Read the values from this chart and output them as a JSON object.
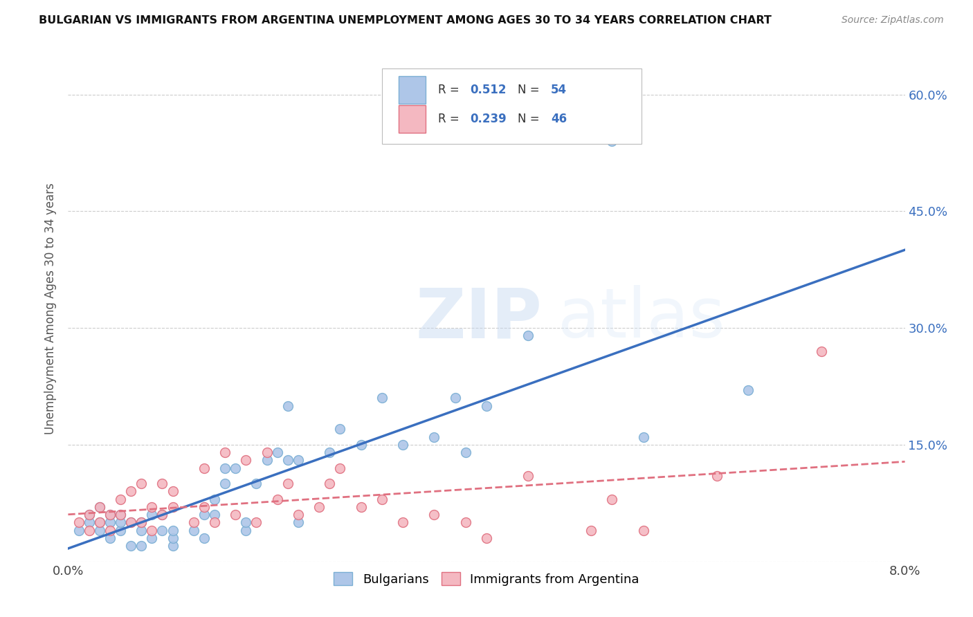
{
  "title": "BULGARIAN VS IMMIGRANTS FROM ARGENTINA UNEMPLOYMENT AMONG AGES 30 TO 34 YEARS CORRELATION CHART",
  "source": "Source: ZipAtlas.com",
  "ylabel": "Unemployment Among Ages 30 to 34 years",
  "x_min": 0.0,
  "x_max": 0.08,
  "y_min": 0.0,
  "y_max": 0.65,
  "x_ticks": [
    0.0,
    0.02,
    0.04,
    0.06,
    0.08
  ],
  "x_tick_labels": [
    "0.0%",
    "",
    "",
    "",
    "8.0%"
  ],
  "y_ticks": [
    0.0,
    0.15,
    0.3,
    0.45,
    0.6
  ],
  "y_tick_labels": [
    "",
    "15.0%",
    "30.0%",
    "45.0%",
    "60.0%"
  ],
  "bulgarian_color": "#aec6e8",
  "bulgarian_edge_color": "#7bafd4",
  "argentina_color": "#f4b8c1",
  "argentina_edge_color": "#e07080",
  "trend_bulgarian_color": "#3a6fbf",
  "trend_argentina_color": "#e07080",
  "R_bulgarian": 0.512,
  "N_bulgarian": 54,
  "R_argentina": 0.239,
  "N_argentina": 46,
  "watermark_zip": "ZIP",
  "watermark_atlas": "atlas",
  "bulgarian_x": [
    0.001,
    0.002,
    0.002,
    0.003,
    0.003,
    0.003,
    0.004,
    0.004,
    0.004,
    0.005,
    0.005,
    0.005,
    0.006,
    0.006,
    0.007,
    0.007,
    0.007,
    0.008,
    0.008,
    0.009,
    0.009,
    0.01,
    0.01,
    0.01,
    0.012,
    0.013,
    0.013,
    0.014,
    0.014,
    0.015,
    0.015,
    0.016,
    0.017,
    0.017,
    0.018,
    0.019,
    0.02,
    0.021,
    0.021,
    0.022,
    0.022,
    0.025,
    0.026,
    0.028,
    0.03,
    0.032,
    0.035,
    0.037,
    0.038,
    0.04,
    0.044,
    0.052,
    0.055,
    0.065
  ],
  "bulgarian_y": [
    0.04,
    0.05,
    0.06,
    0.04,
    0.05,
    0.07,
    0.03,
    0.05,
    0.06,
    0.04,
    0.05,
    0.06,
    0.02,
    0.05,
    0.02,
    0.04,
    0.05,
    0.03,
    0.06,
    0.04,
    0.06,
    0.02,
    0.03,
    0.04,
    0.04,
    0.03,
    0.06,
    0.06,
    0.08,
    0.1,
    0.12,
    0.12,
    0.04,
    0.05,
    0.1,
    0.13,
    0.14,
    0.13,
    0.2,
    0.05,
    0.13,
    0.14,
    0.17,
    0.15,
    0.21,
    0.15,
    0.16,
    0.21,
    0.14,
    0.2,
    0.29,
    0.54,
    0.16,
    0.22
  ],
  "argentina_x": [
    0.001,
    0.002,
    0.002,
    0.003,
    0.003,
    0.004,
    0.004,
    0.005,
    0.005,
    0.006,
    0.006,
    0.007,
    0.007,
    0.008,
    0.008,
    0.009,
    0.009,
    0.01,
    0.01,
    0.012,
    0.013,
    0.013,
    0.014,
    0.015,
    0.016,
    0.017,
    0.018,
    0.019,
    0.02,
    0.021,
    0.022,
    0.024,
    0.025,
    0.026,
    0.028,
    0.03,
    0.032,
    0.035,
    0.038,
    0.04,
    0.044,
    0.05,
    0.052,
    0.055,
    0.062,
    0.072
  ],
  "argentina_y": [
    0.05,
    0.04,
    0.06,
    0.05,
    0.07,
    0.04,
    0.06,
    0.06,
    0.08,
    0.05,
    0.09,
    0.05,
    0.1,
    0.04,
    0.07,
    0.06,
    0.1,
    0.07,
    0.09,
    0.05,
    0.07,
    0.12,
    0.05,
    0.14,
    0.06,
    0.13,
    0.05,
    0.14,
    0.08,
    0.1,
    0.06,
    0.07,
    0.1,
    0.12,
    0.07,
    0.08,
    0.05,
    0.06,
    0.05,
    0.03,
    0.11,
    0.04,
    0.08,
    0.04,
    0.11,
    0.27
  ]
}
